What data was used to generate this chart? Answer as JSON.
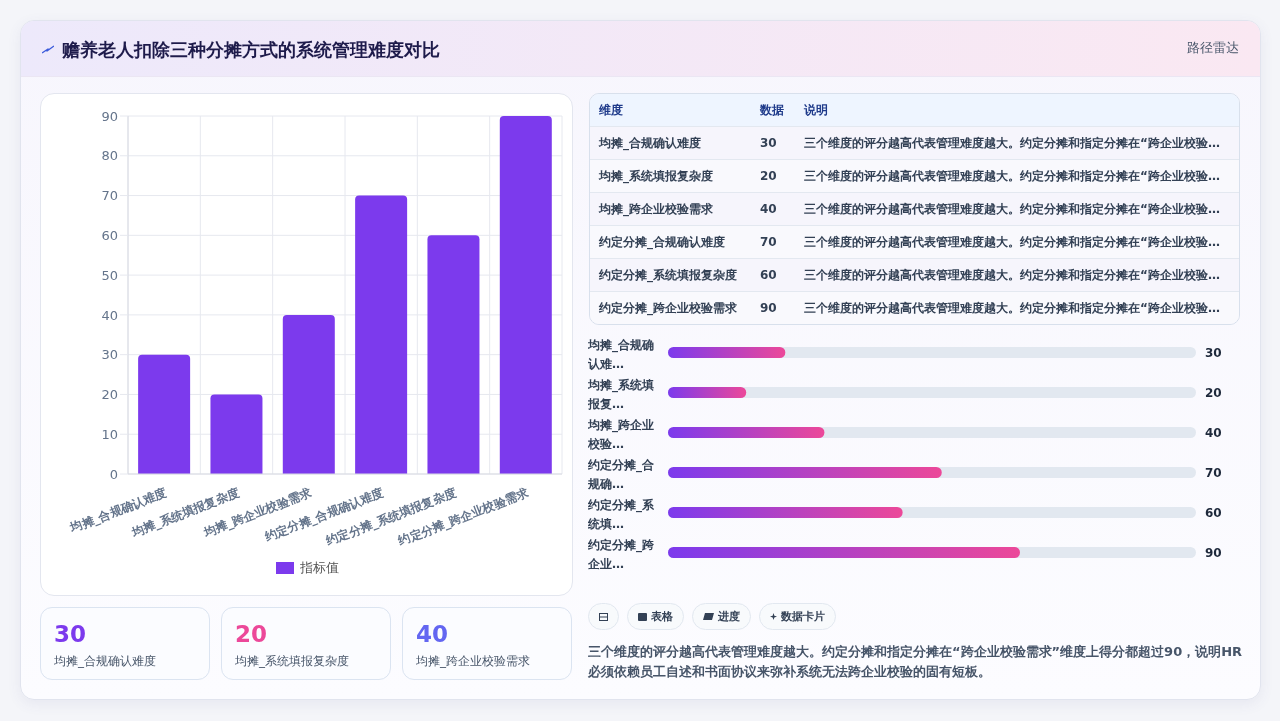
{
  "chart_data": [
    {
      "type": "bar",
      "title": "赡养老人扣除三种分摊方式的系统管理难度对比",
      "annotations": [
        "路径雷达"
      ],
      "categories": [
        "均摊_合规确认难度",
        "均摊_系统填报复杂度",
        "均摊_跨企业校验需求",
        "约定分摊_合规确认难度",
        "约定分摊_系统填报复杂度",
        "约定分摊_跨企业校验需求"
      ],
      "series": [
        {
          "name": "指标值",
          "color": "#7c3aed",
          "values": [
            30,
            20,
            40,
            70,
            60,
            90
          ]
        }
      ],
      "ylim": [
        0,
        90
      ],
      "yticks": [
        0,
        10,
        20,
        30,
        40,
        50,
        60,
        70,
        80,
        90
      ],
      "grid": true,
      "legend": "bottom"
    },
    {
      "type": "other",
      "categories": [
        "均摊_合规确认难度",
        "均摊_系统填报复杂度",
        "均摊_跨企业校验需求",
        "约定分摊_合规确认难度",
        "约定分摊_系统填报复杂度",
        "约定分摊_跨企业校验需求"
      ],
      "values": [
        30,
        20,
        40,
        70,
        60,
        90
      ],
      "data_labels": true,
      "annotations": [
        "维度",
        "数据",
        "说明",
        "三个维度的评分越高代表管理难度越大。约定分摊和指定分摊在“跨企业校验…",
        "三个维度的评分越高代表管理难度越大。约定分摊和指定分摊在“跨企业校验…",
        "三个维度的评分越高代表管理难度越大。约定分摊和指定分摊在“跨企业校验…",
        "三个维度的评分越高代表管理难度越大。约定分摊和指定分摊在“跨企业校验…",
        "三个维度的评分越高代表管理难度越大。约定分摊和指定分摊在“跨企业校验…",
        "三个维度的评分越高代表管理难度越大。约定分摊和指定分摊在“跨企业校验…"
      ]
    },
    {
      "type": "bar",
      "orientation": "horizontal",
      "categories": [
        "均摊_合规确认难…",
        "均摊_系统填报复…",
        "均摊_跨企业校验…",
        "约定分摊_合规确…",
        "约定分摊_系统填…",
        "约定分摊_跨企业…"
      ],
      "values": [
        30,
        20,
        40,
        70,
        60,
        90
      ],
      "color": "#7c3aed",
      "xlim": [
        0,
        135
      ],
      "data_labels": true,
      "tick_labels": "y"
    },
    {
      "type": "other",
      "categories": [
        "均摊_合规确认难度",
        "均摊_系统填报复杂度",
        "均摊_跨企业校验需求"
      ],
      "values": [
        30,
        20,
        40
      ],
      "data_labels": true
    },
    {
      "type": "other",
      "annotations": [
        "表格",
        "进度",
        "数据卡片",
        "三个维度的评分越高代表管理难度越大。约定分摊和指定分摊在“跨企业校验需求”维度上得分都超过90，说明HR必须依赖员工自述和书面协议来弥补系统无法跨企业校验的固有短板。"
      ]
    }
  ]
}
